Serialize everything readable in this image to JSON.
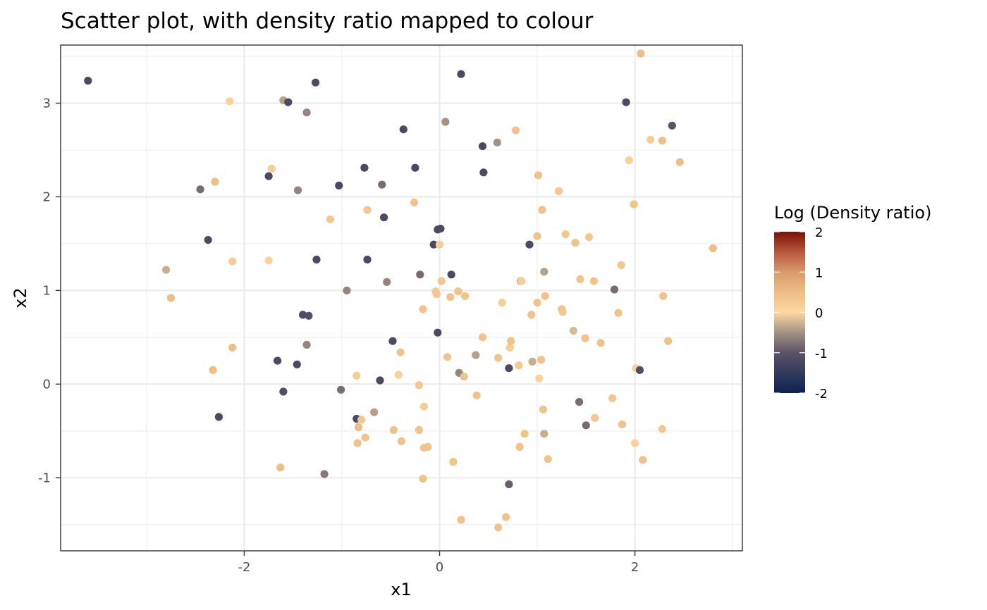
{
  "chart_data": {
    "type": "scatter",
    "title": "Scatter plot, with density ratio mapped to colour",
    "xlabel": "x1",
    "ylabel": "x2",
    "xlim": [
      -3.88,
      3.1
    ],
    "ylim": [
      -1.78,
      3.62
    ],
    "x_ticks": [
      -2,
      0,
      2
    ],
    "y_ticks": [
      -1,
      0,
      1,
      2,
      3
    ],
    "x_tick_labels": [
      "-2",
      "0",
      "2"
    ],
    "y_tick_labels": [
      "-1",
      "0",
      "1",
      "2",
      "3"
    ],
    "grid": true,
    "legend": {
      "title": "Log (Density ratio)",
      "placement": "right",
      "type": "colorbar",
      "range": [
        -2,
        2
      ],
      "breaks": [
        2,
        1,
        0,
        -1,
        -2
      ],
      "break_labels": [
        "2",
        "1",
        "0",
        "-1",
        "-2"
      ],
      "color_stops": [
        {
          "value": -2,
          "color": "#0b2350"
        },
        {
          "value": -1,
          "color": "#5c5268"
        },
        {
          "value": -0.5,
          "color": "#a39283"
        },
        {
          "value": 0,
          "color": "#fcd7a0"
        },
        {
          "value": 0.5,
          "color": "#efbd86"
        },
        {
          "value": 1,
          "color": "#d99a6c"
        },
        {
          "value": 1.5,
          "color": "#b8573e"
        },
        {
          "value": 2,
          "color": "#7a1208"
        }
      ]
    },
    "points": [
      {
        "x": -3.6,
        "y": 3.24,
        "c": -1.2
      },
      {
        "x": -2.8,
        "y": 1.22,
        "c": -0.3
      },
      {
        "x": -2.75,
        "y": 0.92,
        "c": 0.5
      },
      {
        "x": -2.45,
        "y": 2.08,
        "c": -0.8
      },
      {
        "x": -2.37,
        "y": 1.54,
        "c": -1.2
      },
      {
        "x": -2.3,
        "y": 2.16,
        "c": 0.5
      },
      {
        "x": -2.32,
        "y": 0.15,
        "c": 0.5
      },
      {
        "x": -2.26,
        "y": -0.35,
        "c": -1.2
      },
      {
        "x": -2.15,
        "y": 3.02,
        "c": 0.1
      },
      {
        "x": -2.12,
        "y": 1.31,
        "c": 0.2
      },
      {
        "x": -2.12,
        "y": 0.39,
        "c": 0.5
      },
      {
        "x": -1.75,
        "y": 2.22,
        "c": -1.2
      },
      {
        "x": -1.75,
        "y": 1.32,
        "c": 0.1
      },
      {
        "x": -1.72,
        "y": 2.3,
        "c": 0.2
      },
      {
        "x": -1.66,
        "y": 0.25,
        "c": -1.2
      },
      {
        "x": -1.63,
        "y": -0.89,
        "c": 0.5
      },
      {
        "x": -1.6,
        "y": 3.03,
        "c": -0.4
      },
      {
        "x": -1.6,
        "y": -0.08,
        "c": -1.1
      },
      {
        "x": -1.55,
        "y": 3.01,
        "c": -1.2
      },
      {
        "x": -1.46,
        "y": 0.21,
        "c": -1.2
      },
      {
        "x": -1.45,
        "y": 2.07,
        "c": -0.6
      },
      {
        "x": -1.4,
        "y": 0.74,
        "c": -1.2
      },
      {
        "x": -1.36,
        "y": 2.9,
        "c": -0.6
      },
      {
        "x": -1.36,
        "y": 0.42,
        "c": -0.6
      },
      {
        "x": -1.34,
        "y": 0.73,
        "c": -1.1
      },
      {
        "x": -1.27,
        "y": 3.22,
        "c": -1.2
      },
      {
        "x": -1.26,
        "y": 1.33,
        "c": -1.2
      },
      {
        "x": -1.18,
        "y": -0.96,
        "c": -0.7
      },
      {
        "x": -1.12,
        "y": 1.76,
        "c": 0.3
      },
      {
        "x": -1.03,
        "y": 2.12,
        "c": -1.2
      },
      {
        "x": -1.01,
        "y": -0.06,
        "c": -0.8
      },
      {
        "x": -0.95,
        "y": 1.0,
        "c": -0.6
      },
      {
        "x": -0.85,
        "y": 0.09,
        "c": 0.2
      },
      {
        "x": -0.85,
        "y": -0.37,
        "c": -1.2
      },
      {
        "x": -0.84,
        "y": -0.63,
        "c": 0.4
      },
      {
        "x": -0.83,
        "y": -0.46,
        "c": 0.5
      },
      {
        "x": -0.8,
        "y": -0.38,
        "c": 0.3
      },
      {
        "x": -0.77,
        "y": 2.31,
        "c": -1.2
      },
      {
        "x": -0.76,
        "y": -0.57,
        "c": 0.4
      },
      {
        "x": -0.74,
        "y": 1.33,
        "c": -1.2
      },
      {
        "x": -0.74,
        "y": 1.86,
        "c": 0.3
      },
      {
        "x": -0.67,
        "y": -0.3,
        "c": -0.4
      },
      {
        "x": -0.61,
        "y": 0.04,
        "c": -1.2
      },
      {
        "x": -0.59,
        "y": 2.13,
        "c": -0.8
      },
      {
        "x": -0.57,
        "y": 1.78,
        "c": -1.2
      },
      {
        "x": -0.54,
        "y": 1.09,
        "c": -0.6
      },
      {
        "x": -0.48,
        "y": 0.46,
        "c": -1.2
      },
      {
        "x": -0.47,
        "y": -0.49,
        "c": 0.4
      },
      {
        "x": -0.42,
        "y": 0.1,
        "c": 0.1
      },
      {
        "x": -0.4,
        "y": 0.34,
        "c": 0.4
      },
      {
        "x": -0.39,
        "y": -0.61,
        "c": 0.4
      },
      {
        "x": -0.37,
        "y": 2.72,
        "c": -1.2
      },
      {
        "x": -0.26,
        "y": 1.94,
        "c": 0.4
      },
      {
        "x": -0.25,
        "y": 2.31,
        "c": -1.2
      },
      {
        "x": -0.21,
        "y": -0.01,
        "c": 0.3
      },
      {
        "x": -0.21,
        "y": -0.49,
        "c": 0.4
      },
      {
        "x": -0.2,
        "y": 1.17,
        "c": -0.8
      },
      {
        "x": -0.17,
        "y": 0.8,
        "c": 0.4
      },
      {
        "x": -0.17,
        "y": -1.01,
        "c": 0.4
      },
      {
        "x": -0.16,
        "y": -0.24,
        "c": 0.2
      },
      {
        "x": -0.16,
        "y": -0.68,
        "c": 0.4
      },
      {
        "x": -0.12,
        "y": -0.67,
        "c": 0.4
      },
      {
        "x": -0.06,
        "y": 1.49,
        "c": -1.2
      },
      {
        "x": -0.04,
        "y": 0.99,
        "c": 0.3
      },
      {
        "x": -0.03,
        "y": 0.96,
        "c": 0.3
      },
      {
        "x": -0.02,
        "y": 1.65,
        "c": -1.2
      },
      {
        "x": -0.02,
        "y": 0.55,
        "c": -1.2
      },
      {
        "x": 0.0,
        "y": 1.49,
        "c": 0.2
      },
      {
        "x": 0.01,
        "y": 1.66,
        "c": -1.2
      },
      {
        "x": 0.02,
        "y": 1.1,
        "c": 0.3
      },
      {
        "x": 0.06,
        "y": 2.8,
        "c": -0.5
      },
      {
        "x": 0.08,
        "y": 0.29,
        "c": 0.4
      },
      {
        "x": 0.11,
        "y": 0.93,
        "c": 0.4
      },
      {
        "x": 0.12,
        "y": 1.17,
        "c": -1.2
      },
      {
        "x": 0.14,
        "y": -0.83,
        "c": 0.4
      },
      {
        "x": 0.19,
        "y": 0.99,
        "c": 0.4
      },
      {
        "x": 0.2,
        "y": 0.12,
        "c": -0.6
      },
      {
        "x": 0.22,
        "y": 3.31,
        "c": -1.2
      },
      {
        "x": 0.22,
        "y": -1.45,
        "c": 0.4
      },
      {
        "x": 0.25,
        "y": 0.08,
        "c": 0.4
      },
      {
        "x": 0.26,
        "y": 0.94,
        "c": 0.4
      },
      {
        "x": 0.37,
        "y": 0.31,
        "c": -0.4
      },
      {
        "x": 0.38,
        "y": -0.12,
        "c": 0.4
      },
      {
        "x": 0.44,
        "y": 2.54,
        "c": -1.2
      },
      {
        "x": 0.44,
        "y": 0.5,
        "c": 0.4
      },
      {
        "x": 0.45,
        "y": 2.26,
        "c": -1.2
      },
      {
        "x": 0.59,
        "y": 2.58,
        "c": -0.5
      },
      {
        "x": 0.6,
        "y": 0.28,
        "c": 0.4
      },
      {
        "x": 0.6,
        "y": -1.53,
        "c": 0.4
      },
      {
        "x": 0.64,
        "y": 0.87,
        "c": 0.2
      },
      {
        "x": 0.68,
        "y": -1.42,
        "c": 0.4
      },
      {
        "x": 0.71,
        "y": 0.17,
        "c": -1.2
      },
      {
        "x": 0.71,
        "y": -1.07,
        "c": -0.9
      },
      {
        "x": 0.72,
        "y": 0.39,
        "c": 0.2
      },
      {
        "x": 0.73,
        "y": 0.46,
        "c": 0.4
      },
      {
        "x": 0.78,
        "y": 2.71,
        "c": 0.4
      },
      {
        "x": 0.81,
        "y": 0.2,
        "c": 0.3
      },
      {
        "x": 0.82,
        "y": -0.67,
        "c": 0.4
      },
      {
        "x": 0.83,
        "y": 1.1,
        "c": -0.3
      },
      {
        "x": 0.84,
        "y": 1.1,
        "c": 0.2
      },
      {
        "x": 0.87,
        "y": -0.53,
        "c": 0.4
      },
      {
        "x": 0.92,
        "y": 1.49,
        "c": -1.2
      },
      {
        "x": 0.94,
        "y": 0.74,
        "c": 0.4
      },
      {
        "x": 0.95,
        "y": 0.24,
        "c": -0.3
      },
      {
        "x": 1.0,
        "y": 1.58,
        "c": 0.4
      },
      {
        "x": 1.0,
        "y": 0.87,
        "c": 0.4
      },
      {
        "x": 1.01,
        "y": 2.23,
        "c": 0.4
      },
      {
        "x": 1.02,
        "y": 0.06,
        "c": 0.1
      },
      {
        "x": 1.04,
        "y": 0.26,
        "c": 0.4
      },
      {
        "x": 1.05,
        "y": 1.86,
        "c": 0.4
      },
      {
        "x": 1.06,
        "y": -0.27,
        "c": 0.4
      },
      {
        "x": 1.07,
        "y": 1.2,
        "c": -0.4
      },
      {
        "x": 1.07,
        "y": -0.53,
        "c": -0.3
      },
      {
        "x": 1.08,
        "y": 0.94,
        "c": 0.4
      },
      {
        "x": 1.11,
        "y": -0.8,
        "c": 0.4
      },
      {
        "x": 1.22,
        "y": 2.06,
        "c": 0.3
      },
      {
        "x": 1.25,
        "y": 0.8,
        "c": 0.4
      },
      {
        "x": 1.26,
        "y": 0.77,
        "c": 0.3
      },
      {
        "x": 1.29,
        "y": 1.6,
        "c": 0.3
      },
      {
        "x": 1.37,
        "y": 0.57,
        "c": -0.2
      },
      {
        "x": 1.39,
        "y": 1.51,
        "c": 0.4
      },
      {
        "x": 1.43,
        "y": -0.19,
        "c": -0.8
      },
      {
        "x": 1.44,
        "y": 1.12,
        "c": 0.4
      },
      {
        "x": 1.49,
        "y": 0.49,
        "c": 0.4
      },
      {
        "x": 1.5,
        "y": -0.44,
        "c": -0.8
      },
      {
        "x": 1.53,
        "y": 1.57,
        "c": 0.3
      },
      {
        "x": 1.58,
        "y": 1.1,
        "c": 0.4
      },
      {
        "x": 1.59,
        "y": -0.36,
        "c": 0.3
      },
      {
        "x": 1.65,
        "y": 0.44,
        "c": 0.4
      },
      {
        "x": 1.77,
        "y": -0.15,
        "c": 0.3
      },
      {
        "x": 1.79,
        "y": 1.01,
        "c": -0.8
      },
      {
        "x": 1.83,
        "y": 0.76,
        "c": 0.4
      },
      {
        "x": 1.86,
        "y": 1.27,
        "c": 0.3
      },
      {
        "x": 1.87,
        "y": -0.43,
        "c": 0.4
      },
      {
        "x": 1.91,
        "y": 3.01,
        "c": -1.2
      },
      {
        "x": 1.94,
        "y": 2.39,
        "c": 0.1
      },
      {
        "x": 1.99,
        "y": 1.92,
        "c": 0.4
      },
      {
        "x": 2.0,
        "y": -0.63,
        "c": 0.1
      },
      {
        "x": 2.01,
        "y": 0.17,
        "c": 0.1
      },
      {
        "x": 2.05,
        "y": 0.15,
        "c": -1.1
      },
      {
        "x": 2.06,
        "y": 3.53,
        "c": 0.5
      },
      {
        "x": 2.08,
        "y": -0.81,
        "c": 0.4
      },
      {
        "x": 2.16,
        "y": 2.61,
        "c": 0.2
      },
      {
        "x": 2.28,
        "y": 2.6,
        "c": 0.5
      },
      {
        "x": 2.28,
        "y": -0.48,
        "c": 0.3
      },
      {
        "x": 2.29,
        "y": 0.94,
        "c": 0.4
      },
      {
        "x": 2.34,
        "y": 0.46,
        "c": 0.4
      },
      {
        "x": 2.38,
        "y": 2.76,
        "c": -1.0
      },
      {
        "x": 2.46,
        "y": 2.37,
        "c": 0.5
      },
      {
        "x": 2.8,
        "y": 1.45,
        "c": 0.5
      }
    ]
  }
}
